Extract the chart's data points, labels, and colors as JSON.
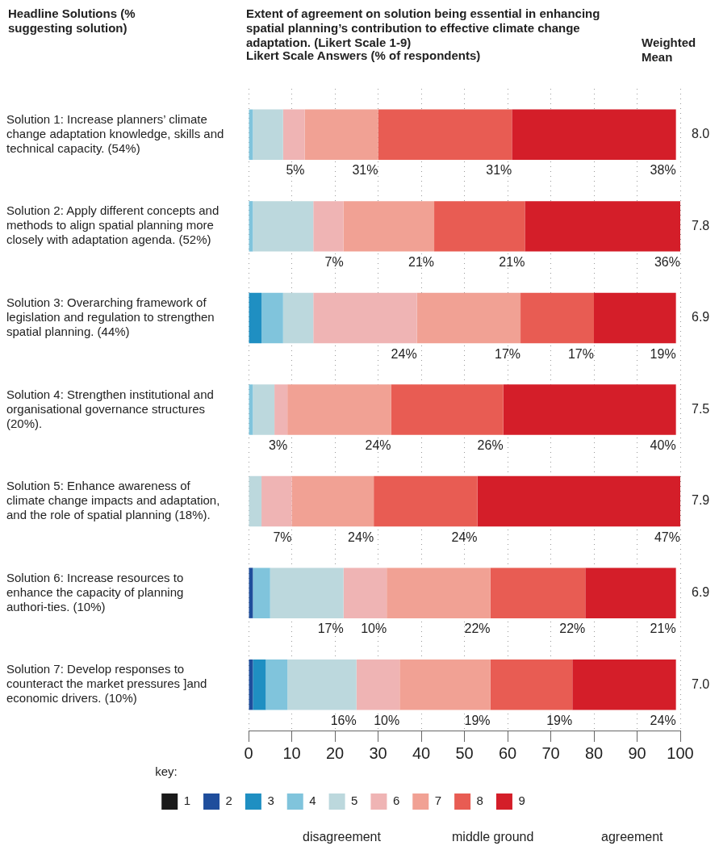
{
  "chart_data": {
    "type": "bar",
    "orientation": "horizontal",
    "stacked": true,
    "title": "Extent of agreement on solution being essential in enhancing spatial planning’s contribution to effective climate change adaptation. (Likert Scale 1-9)",
    "subtitle": "Likert Scale Answers (% of respondents)",
    "ylabel": "Headline Solutions (% suggesting solution)",
    "y2label": "Weighted Mean",
    "legend_title": "key:",
    "categories": [
      "Solution 1: Increase planners’ climate change adaptation knowledge, skills and technical capacity. (54%)",
      "Solution 2: Apply different concepts and methods to align spatial planning more closely with adaptation agenda. (52%)",
      "Solution 3: Overarching framework of legislation and regulation to strengthen spatial planning. (44%)",
      "Solution 4: Strengthen institutional and organisational governance structures (20%).",
      "Solution 5: Enhance awareness of climate change impacts and adaptation, and the role of spatial planning (18%).",
      "Solution 6: Increase resources to enhance the capacity of planning authori-ties. (10%)",
      "Solution 7: Develop responses to counteract the market pressures ]and economic drivers. (10%)"
    ],
    "series": [
      {
        "name": "1",
        "color": "#1a1a1a",
        "values": [
          0,
          0,
          0,
          0,
          0,
          0,
          0
        ]
      },
      {
        "name": "2",
        "color": "#1f4e9c",
        "values": [
          0,
          0,
          0,
          0,
          0,
          1,
          1
        ]
      },
      {
        "name": "3",
        "color": "#1f8fc2",
        "values": [
          0,
          0,
          3,
          0,
          0,
          0,
          3
        ]
      },
      {
        "name": "4",
        "color": "#80c4dc",
        "values": [
          1,
          1,
          5,
          1,
          0,
          4,
          5
        ]
      },
      {
        "name": "5",
        "color": "#bcd8dd",
        "values": [
          7,
          14,
          7,
          5,
          3,
          17,
          16
        ],
        "value_labels": [
          null,
          null,
          null,
          null,
          null,
          "17%",
          "16%"
        ]
      },
      {
        "name": "6",
        "color": "#efb4b4",
        "values": [
          5,
          7,
          24,
          3,
          7,
          10,
          10
        ],
        "value_labels": [
          "5%",
          "7%",
          "24%",
          "3%",
          "7%",
          "10%",
          "10%"
        ]
      },
      {
        "name": "7",
        "color": "#f1a194",
        "values": [
          17,
          21,
          24,
          24,
          19,
          24,
          21
        ],
        "value_labels": [
          null,
          "21%",
          null,
          "24%",
          null,
          null,
          null
        ]
      },
      {
        "name": "8",
        "color": "#e85c53",
        "values": [
          31,
          21,
          17,
          26,
          24,
          22,
          19
        ],
        "value_labels": [
          "31%",
          "21%",
          "17%",
          "26%",
          "24%",
          "22%",
          "19%"
        ]
      },
      {
        "name": "9",
        "color": "#d41e29",
        "values": [
          38,
          36,
          19,
          40,
          47,
          21,
          24
        ],
        "value_labels": [
          "38%",
          "36%",
          "19%",
          "40%",
          "47%",
          "21%",
          "24%"
        ]
      }
    ],
    "xlim": [
      0,
      100
    ],
    "xticks": [
      0,
      10,
      20,
      30,
      40,
      50,
      60,
      70,
      80,
      90,
      100
    ],
    "grid": "x",
    "legend": "bottom",
    "annotations": [
      "8.0",
      "7.8",
      "6.9",
      "7.5",
      "7.9",
      "6.9",
      "7.0",
      "disagreement",
      "middle ground",
      "agreement",
      {
        "text": "31%",
        "x": 30,
        "y": "Solution 1: Increase planners’ climate change adaptation knowledge, skills and technical capacity. (54%)"
      },
      {
        "text": "17%",
        "x": 63,
        "y": "Solution 3: Overarching framework of legislation and regulation to strengthen spatial planning. (44%)"
      },
      {
        "text": "24%",
        "x": 29,
        "y": "Solution 5: Enhance awareness of climate change impacts and adaptation, and the role of spatial planning (18%)."
      },
      {
        "text": "22%",
        "x": 56,
        "y": "Solution 6: Increase resources to enhance the capacity of planning authori-ties. (10%)"
      },
      {
        "text": "19%",
        "x": 56,
        "y": "Solution 7: Develop responses to counteract the market pressures ]and economic drivers. (10%)"
      }
    ]
  }
}
